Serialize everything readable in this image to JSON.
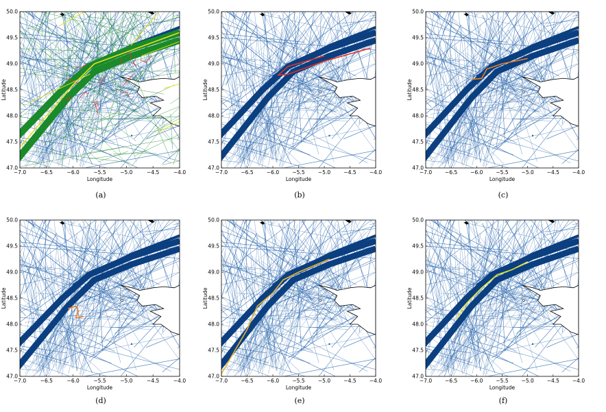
{
  "figure": {
    "panels": [
      {
        "caption": "(a)",
        "highlight": "multi"
      },
      {
        "caption": "(b)",
        "highlight": "red"
      },
      {
        "caption": "(c)",
        "highlight": "orange"
      },
      {
        "caption": "(d)",
        "highlight": "orange"
      },
      {
        "caption": "(e)",
        "highlight": "gold"
      },
      {
        "caption": "(f)",
        "highlight": "yellow"
      }
    ],
    "colors": {
      "track": "#1f5fa8",
      "track_dense": "#0b3f80",
      "coast": "#000000",
      "red": "#e0322a",
      "orange": "#f07d1a",
      "gold": "#f0b429",
      "yellow": "#e6e020",
      "green": "#1a8a2a"
    }
  },
  "chart_data": [
    {
      "type": "line",
      "panel": "(a)",
      "xlabel": "Longitude",
      "ylabel": "Latitude",
      "xlim": [
        -7.0,
        -4.0
      ],
      "ylim": [
        47.0,
        50.0
      ],
      "xticks": [
        "-7.0",
        "-6.5",
        "-6.0",
        "-5.5",
        "-5.0",
        "-4.5",
        "-4.0"
      ],
      "yticks": [
        "47.0",
        "47.5",
        "48.0",
        "48.5",
        "49.0",
        "49.5",
        "50.0"
      ],
      "series": [
        {
          "color": "multi",
          "x": [
            -7.0,
            -6.0,
            -5.6,
            -4.0
          ],
          "y": [
            47.4,
            48.6,
            49.0,
            49.6
          ]
        }
      ]
    },
    {
      "type": "line",
      "panel": "(b)",
      "xlabel": "Longitude",
      "ylabel": "Latitude",
      "xlim": [
        -7.0,
        -4.0
      ],
      "ylim": [
        47.0,
        50.0
      ],
      "xticks": [
        "-7.0",
        "-6.5",
        "-6.0",
        "-5.5",
        "-5.0",
        "-4.5",
        "-4.0"
      ],
      "yticks": [
        "47.0",
        "47.5",
        "48.0",
        "48.5",
        "49.0",
        "49.5",
        "50.0"
      ],
      "series": [
        {
          "color": "red",
          "x": [
            -4.1,
            -5.0,
            -5.7,
            -5.9,
            -5.7,
            -5.0
          ],
          "y": [
            49.3,
            49.05,
            48.8,
            48.78,
            48.95,
            49.15
          ]
        }
      ]
    },
    {
      "type": "line",
      "panel": "(c)",
      "xlabel": "Longitude",
      "ylabel": "Latitude",
      "xlim": [
        -7.0,
        -4.0
      ],
      "ylim": [
        47.0,
        50.0
      ],
      "xticks": [
        "-7.0",
        "-6.5",
        "-6.0",
        "-5.5",
        "-5.0",
        "-4.5",
        "-4.0"
      ],
      "yticks": [
        "47.0",
        "47.5",
        "48.0",
        "48.5",
        "49.0",
        "49.5",
        "50.0"
      ],
      "series": [
        {
          "color": "orange",
          "x": [
            -6.1,
            -5.9,
            -5.8,
            -5.5,
            -5.0
          ],
          "y": [
            48.7,
            48.72,
            48.9,
            49.0,
            49.1
          ]
        }
      ]
    },
    {
      "type": "line",
      "panel": "(d)",
      "xlabel": "Longitude",
      "ylabel": "Latitude",
      "xlim": [
        -7.0,
        -4.0
      ],
      "ylim": [
        47.0,
        50.0
      ],
      "xticks": [
        "-7.0",
        "-6.5",
        "-6.0",
        "-5.5",
        "-5.0",
        "-4.5",
        "-4.0"
      ],
      "yticks": [
        "47.0",
        "47.5",
        "48.0",
        "48.5",
        "49.0",
        "49.5",
        "50.0"
      ],
      "series": [
        {
          "color": "orange",
          "x": [
            -6.1,
            -5.95,
            -5.9,
            -5.95,
            -5.8
          ],
          "y": [
            48.3,
            48.35,
            48.25,
            48.12,
            48.15
          ]
        }
      ]
    },
    {
      "type": "line",
      "panel": "(e)",
      "xlabel": "Longitude",
      "ylabel": "Latitude",
      "xlim": [
        -7.0,
        -4.0
      ],
      "ylim": [
        47.0,
        50.0
      ],
      "xticks": [
        "-7.0",
        "-6.5",
        "-6.0",
        "-5.5",
        "-5.0",
        "-4.5",
        "-4.0"
      ],
      "yticks": [
        "47.0",
        "47.5",
        "48.0",
        "48.5",
        "49.0",
        "49.5",
        "50.0"
      ],
      "series": [
        {
          "color": "gold",
          "x": [
            -7.0,
            -6.5,
            -6.3,
            -6.0,
            -5.8,
            -5.5,
            -4.9
          ],
          "y": [
            47.05,
            47.9,
            48.35,
            48.6,
            48.85,
            49.0,
            49.25
          ]
        }
      ]
    },
    {
      "type": "line",
      "panel": "(f)",
      "xlabel": "Longitude",
      "ylabel": "Latitude",
      "xlim": [
        -7.0,
        -4.0
      ],
      "ylim": [
        47.0,
        50.0
      ],
      "xticks": [
        "-7.0",
        "-6.5",
        "-6.0",
        "-5.5",
        "-5.0",
        "-4.5",
        "-4.0"
      ],
      "yticks": [
        "47.0",
        "47.5",
        "48.0",
        "48.5",
        "49.0",
        "49.5",
        "50.0"
      ],
      "series": [
        {
          "color": "yellow",
          "x": [
            -6.4,
            -6.2,
            -5.9,
            -5.6,
            -5.3,
            -5.0
          ],
          "y": [
            48.1,
            48.4,
            48.7,
            48.95,
            49.05,
            49.2
          ]
        }
      ]
    }
  ]
}
